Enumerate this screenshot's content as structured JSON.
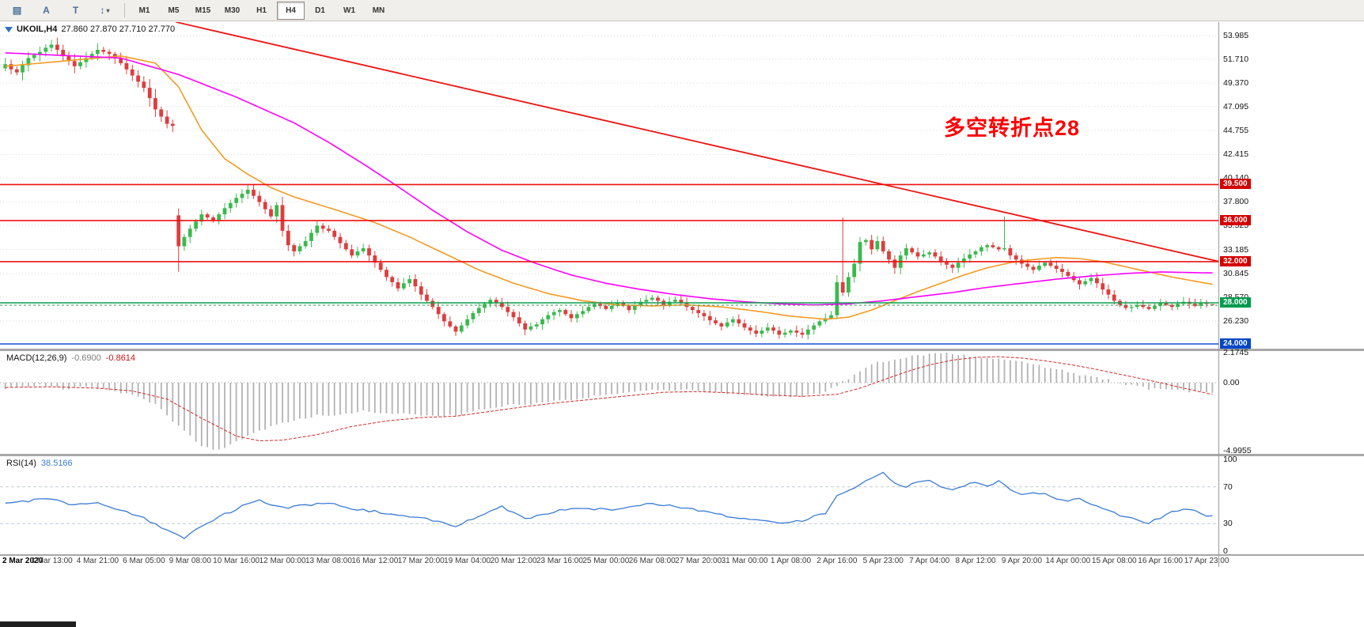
{
  "toolbar": {
    "tools": [
      {
        "name": "chart-grid-icon",
        "glyph": "▤"
      },
      {
        "name": "text-tool-icon",
        "glyph": "A"
      },
      {
        "name": "template-tool-icon",
        "glyph": "T"
      },
      {
        "name": "scale-arrows-icon",
        "glyph": "↕",
        "has_dropdown": true
      }
    ],
    "dropdown_glyph": "▾",
    "timeframes": [
      "M1",
      "M5",
      "M15",
      "M30",
      "H1",
      "H4",
      "D1",
      "W1",
      "MN"
    ],
    "active_timeframe": "H4"
  },
  "chart_data": {
    "type": "candlestick",
    "symbol_timeframe": "UKOIL,H4",
    "ohlc_text": "27.860 27.870 27.710 27.770",
    "last_ohlc": {
      "open": 27.86,
      "high": 27.87,
      "low": 27.71,
      "close": 27.77
    },
    "annotation": {
      "text": "多空转折点28",
      "color": "#ff0000"
    },
    "bid_price": 27.77,
    "colors": {
      "up": "#3cb94e",
      "down": "#dc3e3e",
      "ma_fast": "#f59a23",
      "ma_slow": "#ff00ff",
      "level_red": "#ee1111",
      "level_green": "#0aa14e",
      "level_blue": "#1b4fd8",
      "macd_hist": "#b2b2b2",
      "macd_signal": "#d42a2a",
      "rsi_line": "#3a7bd5"
    },
    "price_axis": [
      {
        "label": "53.985",
        "price": 53.985
      },
      {
        "label": "51.710",
        "price": 51.71
      },
      {
        "label": "49.370",
        "price": 49.37
      },
      {
        "label": "47.095",
        "price": 47.095
      },
      {
        "label": "44.755",
        "price": 44.755
      },
      {
        "label": "42.415",
        "price": 42.415
      },
      {
        "label": "40.140",
        "price": 40.14
      },
      {
        "label": "37.800",
        "price": 37.8
      },
      {
        "label": "35.525",
        "price": 35.525
      },
      {
        "label": "33.185",
        "price": 33.185
      },
      {
        "label": "30.845",
        "price": 30.845
      },
      {
        "label": "28.570",
        "price": 28.57
      },
      {
        "label": "26.230",
        "price": 26.23
      }
    ],
    "hlines": [
      {
        "price": 39.5,
        "label": "39.500",
        "color": "#ee1111",
        "badge_bg": "#d40000"
      },
      {
        "price": 36.0,
        "label": "36.000",
        "color": "#ee1111",
        "badge_bg": "#d40000"
      },
      {
        "price": 32.0,
        "label": "32.000",
        "color": "#ee1111",
        "badge_bg": "#d40000"
      },
      {
        "price": 28.0,
        "label": "28.000",
        "color": "#0aa14e",
        "badge_bg": "#009a4e"
      },
      {
        "price": 24.0,
        "label": "24.000",
        "color": "#1b4fd8",
        "badge_bg": "#0045c8"
      }
    ],
    "trendline": {
      "b1": 29.5,
      "p1": 55.3,
      "b2": 211,
      "p2": 31.9,
      "color": "#ee1111"
    },
    "closes": [
      51.2,
      50.7,
      50.4,
      51.1,
      51.8,
      52.1,
      52.4,
      52.8,
      53.1,
      52.6,
      52.0,
      51.5,
      51.0,
      51.4,
      51.8,
      52.2,
      52.6,
      52.4,
      52.2,
      51.8,
      51.3,
      50.7,
      50.1,
      49.5,
      48.9,
      47.9,
      46.8,
      46.1,
      45.4,
      45.2,
      33.5,
      34.4,
      35.2,
      35.9,
      36.6,
      36.3,
      36.0,
      36.6,
      37.2,
      37.7,
      38.2,
      38.6,
      39.0,
      38.4,
      37.8,
      37.1,
      36.4,
      37.5,
      35.0,
      33.6,
      33.0,
      33.5,
      34.0,
      34.8,
      35.5,
      35.2,
      35.0,
      34.4,
      33.8,
      33.2,
      32.6,
      33.0,
      33.3,
      32.6,
      31.9,
      31.2,
      30.5,
      30.0,
      29.4,
      29.9,
      30.3,
      29.6,
      28.8,
      28.2,
      27.6,
      26.9,
      26.2,
      25.7,
      25.2,
      25.8,
      26.4,
      27.0,
      27.5,
      27.9,
      28.3,
      28.0,
      27.6,
      27.1,
      26.6,
      26.0,
      25.4,
      25.7,
      25.9,
      26.4,
      26.8,
      27.1,
      27.3,
      26.9,
      26.5,
      26.9,
      27.2,
      27.6,
      27.9,
      27.7,
      27.4,
      27.7,
      28.0,
      27.7,
      27.3,
      27.7,
      28.1,
      28.3,
      28.5,
      28.2,
      27.8,
      28.1,
      28.3,
      28.0,
      27.6,
      27.3,
      27.0,
      26.7,
      26.3,
      26.0,
      25.7,
      26.1,
      26.4,
      26.0,
      25.6,
      25.3,
      25.0,
      25.3,
      25.6,
      25.3,
      24.9,
      25.1,
      25.3,
      25.1,
      24.9,
      25.4,
      25.8,
      26.2,
      26.5,
      26.8,
      30.0,
      29.0,
      30.5,
      31.8,
      33.9,
      34.1,
      33.2,
      34.0,
      33.0,
      32.2,
      31.4,
      32.6,
      33.3,
      32.9,
      32.5,
      32.7,
      32.9,
      32.5,
      32.0,
      31.7,
      31.4,
      31.9,
      32.3,
      32.7,
      33.0,
      33.4,
      33.6,
      33.4,
      33.2,
      33.3,
      32.6,
      32.2,
      31.8,
      31.5,
      31.2,
      31.6,
      31.9,
      31.6,
      31.3,
      31.0,
      30.6,
      30.2,
      29.8,
      30.1,
      30.4,
      29.9,
      29.3,
      28.8,
      28.2,
      27.8,
      27.5,
      27.6,
      27.8,
      27.6,
      27.4,
      27.7,
      28.0,
      27.8,
      27.6,
      27.9,
      28.1,
      27.9,
      27.7,
      28.0,
      27.9,
      27.77
    ],
    "overrides": {
      "30": {
        "o": 36.5,
        "l": 31.02
      },
      "42": {
        "h": 39.47
      },
      "78": {
        "l": 24.78
      },
      "90": {
        "l": 24.85
      },
      "134": {
        "l": 24.52
      },
      "138": {
        "l": 24.55
      },
      "144": {
        "l": 26.4
      },
      "145": {
        "h": 36.29
      },
      "173": {
        "h": 36.4
      },
      "209": {
        "o": 27.86,
        "h": 27.87,
        "l": 27.71,
        "c": 27.77
      }
    },
    "ma_fast": {
      "points": [
        [
          0,
          51.0
        ],
        [
          10,
          51.5
        ],
        [
          20,
          52.0
        ],
        [
          26,
          51.3
        ],
        [
          30,
          49.0
        ],
        [
          34,
          44.8
        ],
        [
          38,
          42.0
        ],
        [
          42,
          40.5
        ],
        [
          46,
          39.2
        ],
        [
          50,
          38.3
        ],
        [
          54,
          37.6
        ],
        [
          58,
          36.9
        ],
        [
          64,
          35.8
        ],
        [
          70,
          34.4
        ],
        [
          76,
          32.8
        ],
        [
          82,
          31.2
        ],
        [
          88,
          29.9
        ],
        [
          94,
          28.9
        ],
        [
          100,
          28.2
        ],
        [
          106,
          27.8
        ],
        [
          112,
          27.7
        ],
        [
          118,
          27.8
        ],
        [
          124,
          27.6
        ],
        [
          130,
          27.2
        ],
        [
          136,
          26.7
        ],
        [
          142,
          26.4
        ],
        [
          146,
          26.6
        ],
        [
          150,
          27.3
        ],
        [
          154,
          28.2
        ],
        [
          158,
          29.1
        ],
        [
          162,
          29.9
        ],
        [
          166,
          30.7
        ],
        [
          170,
          31.4
        ],
        [
          174,
          31.9
        ],
        [
          178,
          32.2
        ],
        [
          182,
          32.4
        ],
        [
          186,
          32.3
        ],
        [
          190,
          32.0
        ],
        [
          194,
          31.5
        ],
        [
          198,
          31.0
        ],
        [
          202,
          30.5
        ],
        [
          206,
          30.1
        ],
        [
          209,
          29.8
        ]
      ]
    },
    "ma_slow": {
      "points": [
        [
          0,
          52.3
        ],
        [
          20,
          51.8
        ],
        [
          30,
          50.2
        ],
        [
          40,
          48.0
        ],
        [
          46,
          46.5
        ],
        [
          50,
          45.5
        ],
        [
          56,
          43.6
        ],
        [
          62,
          41.5
        ],
        [
          68,
          39.3
        ],
        [
          74,
          37.0
        ],
        [
          80,
          34.9
        ],
        [
          86,
          33.1
        ],
        [
          92,
          31.8
        ],
        [
          98,
          30.7
        ],
        [
          104,
          29.9
        ],
        [
          110,
          29.3
        ],
        [
          116,
          28.8
        ],
        [
          122,
          28.4
        ],
        [
          128,
          28.1
        ],
        [
          134,
          27.9
        ],
        [
          140,
          27.8
        ],
        [
          146,
          27.9
        ],
        [
          152,
          28.2
        ],
        [
          158,
          28.6
        ],
        [
          164,
          29.0
        ],
        [
          170,
          29.5
        ],
        [
          176,
          29.9
        ],
        [
          182,
          30.3
        ],
        [
          188,
          30.6
        ],
        [
          194,
          30.85
        ],
        [
          200,
          31.0
        ],
        [
          209,
          30.9
        ]
      ]
    },
    "time_labels": [
      "2 Mar 2020",
      "3 Mar 13:00",
      "4 Mar 21:00",
      "6 Mar 05:00",
      "9 Mar 08:00",
      "10 Mar 16:00",
      "12 Mar 00:00",
      "13 Mar 08:00",
      "16 Mar 12:00",
      "17 Mar 20:00",
      "19 Mar 04:00",
      "20 Mar 12:00",
      "23 Mar 16:00",
      "25 Mar 00:00",
      "26 Mar 08:00",
      "27 Mar 20:00",
      "31 Mar 00:00",
      "1 Apr 08:00",
      "2 Apr 16:00",
      "5 Apr 23:00",
      "7 Apr 04:00",
      "8 Apr 12:00",
      "9 Apr 20:00",
      "14 Apr 00:00",
      "15 Apr 08:00",
      "16 Apr 16:00",
      "17 Apr 23:00"
    ],
    "macd": {
      "label": "MACD(12,26,9)",
      "value_main": "-0.6900",
      "value_signal": "-0.8614",
      "axis": [
        {
          "label": "2.1745",
          "value": 2.1745
        },
        {
          "label": "0.00",
          "value": 0
        },
        {
          "label": "-4.9955",
          "value": -4.9955
        }
      ],
      "hist_points": [
        [
          0,
          -0.4
        ],
        [
          6,
          -0.2
        ],
        [
          10,
          -0.45
        ],
        [
          14,
          -0.3
        ],
        [
          18,
          -0.5
        ],
        [
          22,
          -0.9
        ],
        [
          26,
          -1.6
        ],
        [
          30,
          -3.2
        ],
        [
          34,
          -4.6
        ],
        [
          36,
          -4.95
        ],
        [
          38,
          -4.7
        ],
        [
          42,
          -3.9
        ],
        [
          46,
          -3.2
        ],
        [
          50,
          -2.8
        ],
        [
          54,
          -2.4
        ],
        [
          58,
          -2.3
        ],
        [
          62,
          -2.1
        ],
        [
          66,
          -2.2
        ],
        [
          70,
          -2.3
        ],
        [
          74,
          -2.4
        ],
        [
          78,
          -2.4
        ],
        [
          82,
          -2.0
        ],
        [
          86,
          -1.7
        ],
        [
          90,
          -1.6
        ],
        [
          94,
          -1.4
        ],
        [
          98,
          -1.2
        ],
        [
          102,
          -1.0
        ],
        [
          106,
          -0.8
        ],
        [
          110,
          -0.6
        ],
        [
          114,
          -0.5
        ],
        [
          118,
          -0.55
        ],
        [
          122,
          -0.7
        ],
        [
          126,
          -0.8
        ],
        [
          130,
          -0.9
        ],
        [
          134,
          -1.0
        ],
        [
          138,
          -1.0
        ],
        [
          142,
          -0.7
        ],
        [
          144,
          -0.2
        ],
        [
          146,
          0.3
        ],
        [
          148,
          0.9
        ],
        [
          150,
          1.4
        ],
        [
          154,
          1.7
        ],
        [
          158,
          2.0
        ],
        [
          162,
          2.17
        ],
        [
          166,
          2.0
        ],
        [
          170,
          1.85
        ],
        [
          174,
          1.7
        ],
        [
          178,
          1.3
        ],
        [
          182,
          1.0
        ],
        [
          186,
          0.6
        ],
        [
          190,
          0.3
        ],
        [
          194,
          -0.1
        ],
        [
          198,
          -0.45
        ],
        [
          202,
          -0.55
        ],
        [
          206,
          -0.65
        ],
        [
          209,
          -0.69
        ]
      ],
      "signal_points": [
        [
          0,
          -0.35
        ],
        [
          8,
          -0.3
        ],
        [
          16,
          -0.4
        ],
        [
          22,
          -0.6
        ],
        [
          28,
          -1.2
        ],
        [
          34,
          -2.6
        ],
        [
          40,
          -3.9
        ],
        [
          44,
          -4.25
        ],
        [
          48,
          -4.2
        ],
        [
          54,
          -3.8
        ],
        [
          60,
          -3.2
        ],
        [
          66,
          -2.8
        ],
        [
          72,
          -2.55
        ],
        [
          78,
          -2.45
        ],
        [
          84,
          -2.1
        ],
        [
          90,
          -1.75
        ],
        [
          96,
          -1.45
        ],
        [
          102,
          -1.2
        ],
        [
          108,
          -0.95
        ],
        [
          114,
          -0.7
        ],
        [
          120,
          -0.65
        ],
        [
          126,
          -0.75
        ],
        [
          132,
          -0.9
        ],
        [
          138,
          -1.0
        ],
        [
          144,
          -0.85
        ],
        [
          148,
          -0.4
        ],
        [
          152,
          0.2
        ],
        [
          156,
          0.8
        ],
        [
          160,
          1.3
        ],
        [
          164,
          1.65
        ],
        [
          168,
          1.85
        ],
        [
          172,
          1.9
        ],
        [
          176,
          1.8
        ],
        [
          180,
          1.6
        ],
        [
          184,
          1.35
        ],
        [
          188,
          1.05
        ],
        [
          192,
          0.7
        ],
        [
          196,
          0.35
        ],
        [
          200,
          0.0
        ],
        [
          204,
          -0.4
        ],
        [
          209,
          -0.8614
        ]
      ]
    },
    "rsi": {
      "label": "RSI(14)",
      "value": "38.5166",
      "axis": [
        {
          "label": "100",
          "value": 100
        },
        {
          "label": "70",
          "value": 70
        },
        {
          "label": "30",
          "value": 30
        },
        {
          "label": "0",
          "value": 0
        }
      ],
      "levels": [
        70,
        30
      ],
      "points": [
        [
          0,
          52
        ],
        [
          4,
          55
        ],
        [
          8,
          57
        ],
        [
          12,
          50
        ],
        [
          16,
          53
        ],
        [
          20,
          45
        ],
        [
          24,
          36
        ],
        [
          28,
          22
        ],
        [
          31,
          15
        ],
        [
          34,
          28
        ],
        [
          38,
          40
        ],
        [
          42,
          52
        ],
        [
          44,
          55
        ],
        [
          48,
          47
        ],
        [
          52,
          50
        ],
        [
          56,
          52
        ],
        [
          60,
          46
        ],
        [
          64,
          43
        ],
        [
          68,
          38
        ],
        [
          72,
          36
        ],
        [
          76,
          30
        ],
        [
          78,
          27
        ],
        [
          82,
          38
        ],
        [
          84,
          45
        ],
        [
          86,
          48
        ],
        [
          88,
          42
        ],
        [
          90,
          35
        ],
        [
          94,
          40
        ],
        [
          96,
          44
        ],
        [
          100,
          47
        ],
        [
          104,
          45
        ],
        [
          108,
          48
        ],
        [
          112,
          52
        ],
        [
          116,
          49
        ],
        [
          120,
          44
        ],
        [
          124,
          39
        ],
        [
          128,
          36
        ],
        [
          132,
          34
        ],
        [
          134,
          31
        ],
        [
          138,
          33
        ],
        [
          142,
          42
        ],
        [
          144,
          60
        ],
        [
          146,
          66
        ],
        [
          148,
          72
        ],
        [
          150,
          80
        ],
        [
          152,
          85
        ],
        [
          154,
          74
        ],
        [
          156,
          70
        ],
        [
          158,
          75
        ],
        [
          160,
          78
        ],
        [
          162,
          71
        ],
        [
          164,
          68
        ],
        [
          166,
          72
        ],
        [
          168,
          74
        ],
        [
          170,
          70
        ],
        [
          172,
          76
        ],
        [
          174,
          68
        ],
        [
          176,
          62
        ],
        [
          178,
          64
        ],
        [
          180,
          62
        ],
        [
          182,
          58
        ],
        [
          184,
          55
        ],
        [
          186,
          57
        ],
        [
          188,
          52
        ],
        [
          190,
          47
        ],
        [
          192,
          42
        ],
        [
          194,
          37
        ],
        [
          196,
          34
        ],
        [
          198,
          31
        ],
        [
          200,
          36
        ],
        [
          202,
          42
        ],
        [
          204,
          46
        ],
        [
          206,
          44
        ],
        [
          208,
          39
        ],
        [
          209,
          38.52
        ]
      ]
    }
  }
}
